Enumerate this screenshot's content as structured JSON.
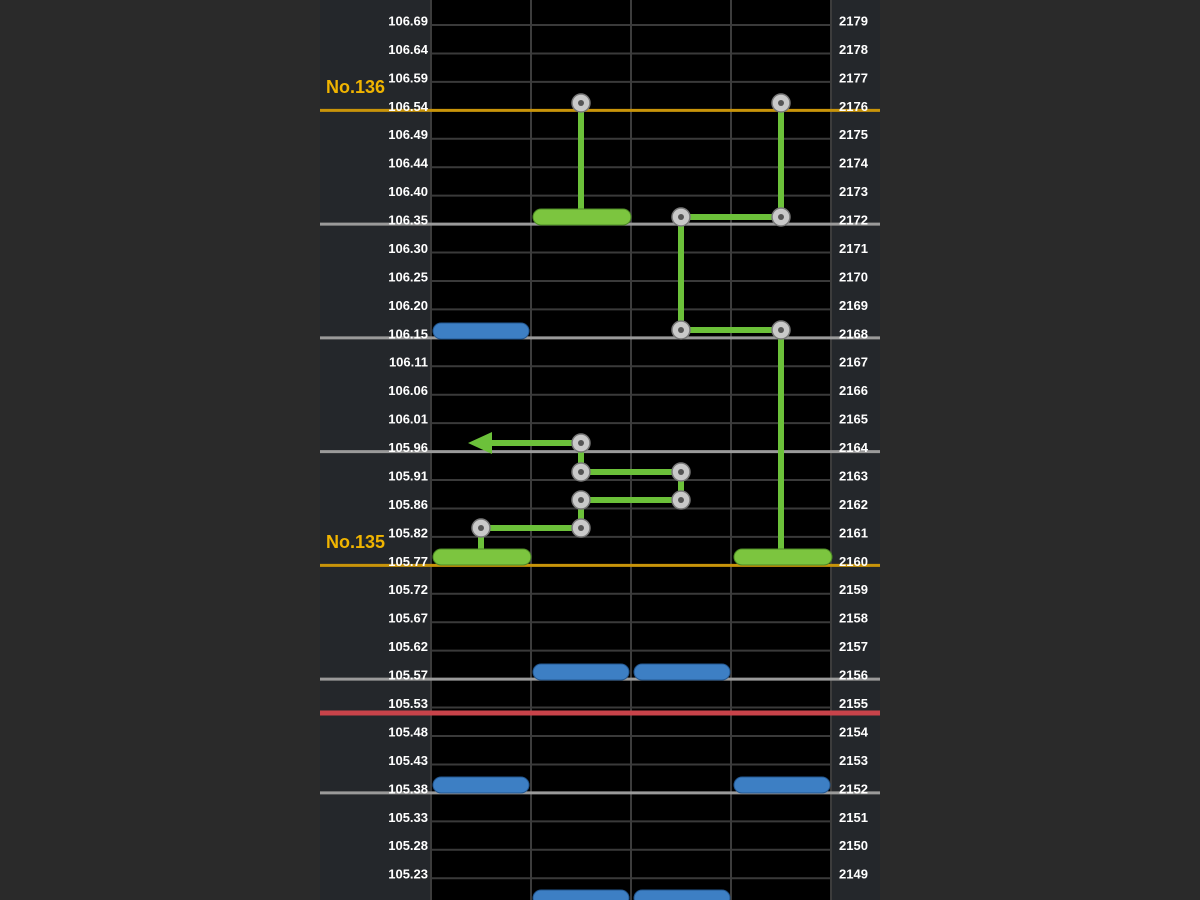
{
  "rows": [
    {
      "time": "106.69",
      "beat": "2179"
    },
    {
      "time": "106.64",
      "beat": "2178"
    },
    {
      "time": "106.59",
      "beat": "2177"
    },
    {
      "time": "106.54",
      "beat": "2176"
    },
    {
      "time": "106.49",
      "beat": "2175"
    },
    {
      "time": "106.44",
      "beat": "2174"
    },
    {
      "time": "106.40",
      "beat": "2173"
    },
    {
      "time": "106.35",
      "beat": "2172"
    },
    {
      "time": "106.30",
      "beat": "2171"
    },
    {
      "time": "106.25",
      "beat": "2170"
    },
    {
      "time": "106.20",
      "beat": "2169"
    },
    {
      "time": "106.15",
      "beat": "2168"
    },
    {
      "time": "106.11",
      "beat": "2167"
    },
    {
      "time": "106.06",
      "beat": "2166"
    },
    {
      "time": "106.01",
      "beat": "2165"
    },
    {
      "time": "105.96",
      "beat": "2164"
    },
    {
      "time": "105.91",
      "beat": "2163"
    },
    {
      "time": "105.86",
      "beat": "2162"
    },
    {
      "time": "105.82",
      "beat": "2161"
    },
    {
      "time": "105.77",
      "beat": "2160"
    },
    {
      "time": "105.72",
      "beat": "2159"
    },
    {
      "time": "105.67",
      "beat": "2158"
    },
    {
      "time": "105.62",
      "beat": "2157"
    },
    {
      "time": "105.57",
      "beat": "2156"
    },
    {
      "time": "105.53",
      "beat": "2155"
    },
    {
      "time": "105.48",
      "beat": "2154"
    },
    {
      "time": "105.43",
      "beat": "2153"
    },
    {
      "time": "105.38",
      "beat": "2152"
    },
    {
      "time": "105.33",
      "beat": "2151"
    },
    {
      "time": "105.28",
      "beat": "2150"
    },
    {
      "time": "105.23",
      "beat": "2149"
    }
  ],
  "measures": [
    {
      "label": "No.136"
    },
    {
      "label": "No.135"
    }
  ]
}
